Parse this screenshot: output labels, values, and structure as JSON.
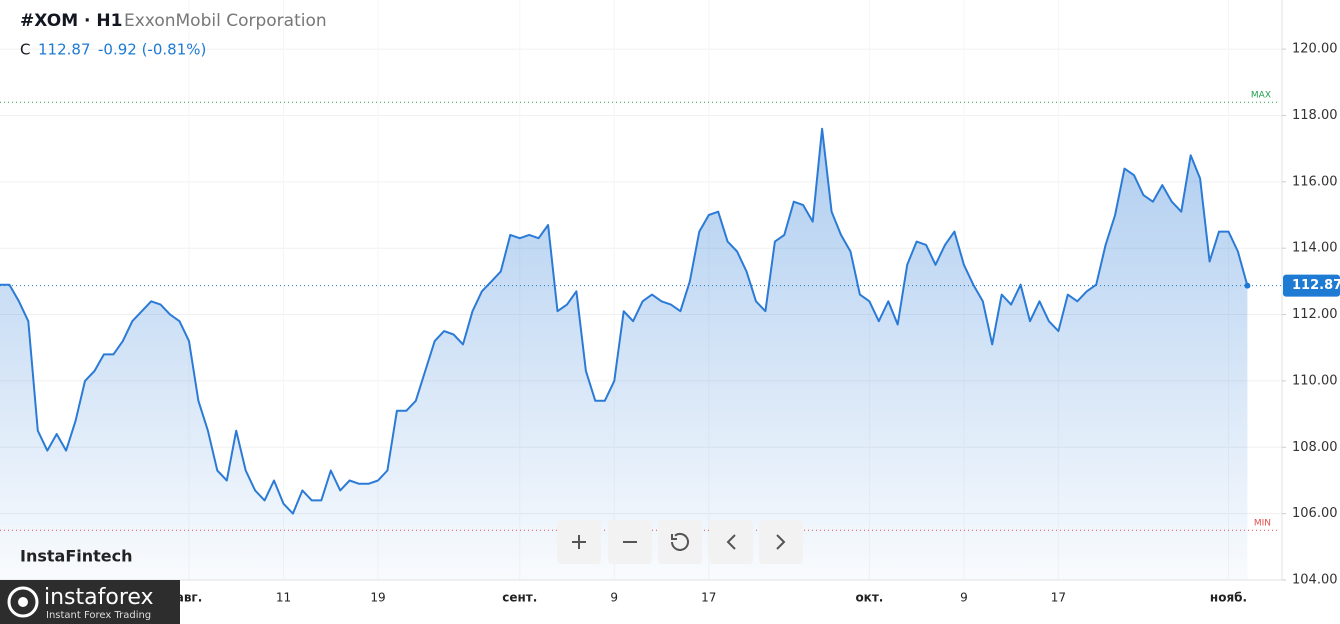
{
  "header": {
    "symbol": "#XOM · H1",
    "company": "ExxonMobil Corporation",
    "price_prefix": "C",
    "change": "-0.92 (-0.81%)"
  },
  "brand": {
    "watermark": "InstaFintech",
    "logo": "instaforex",
    "tagline": "Instant Forex Trading"
  },
  "chart_data": {
    "type": "area",
    "color": "#2b7bd6",
    "grid": true,
    "categories": [
      null,
      null,
      null,
      null,
      null,
      null,
      null,
      null,
      null,
      null,
      null,
      null,
      null,
      null,
      null,
      null,
      null,
      null,
      null,
      null,
      "авг.",
      null,
      null,
      null,
      null,
      null,
      null,
      null,
      null,
      null,
      "11",
      null,
      null,
      null,
      null,
      null,
      null,
      null,
      null,
      null,
      "19",
      null,
      null,
      null,
      null,
      null,
      null,
      null,
      null,
      null,
      null,
      null,
      null,
      null,
      null,
      "сент.",
      null,
      null,
      null,
      null,
      null,
      null,
      null,
      null,
      null,
      "9",
      null,
      null,
      null,
      null,
      null,
      null,
      null,
      null,
      null,
      "17",
      null,
      null,
      null,
      null,
      null,
      null,
      null,
      null,
      null,
      null,
      null,
      null,
      null,
      null,
      null,
      null,
      "окт.",
      null,
      null,
      null,
      null,
      null,
      null,
      null,
      null,
      null,
      "9",
      null,
      null,
      null,
      null,
      null,
      null,
      null,
      null,
      null,
      "17",
      null,
      null,
      null,
      null,
      null,
      null,
      null,
      null,
      null,
      null,
      null,
      null,
      null,
      null,
      null,
      null,
      null,
      "нояб.",
      null,
      null
    ],
    "values": [
      112.9,
      112.9,
      112.4,
      111.8,
      108.5,
      107.9,
      108.4,
      107.9,
      108.8,
      110.0,
      110.3,
      110.8,
      110.8,
      111.2,
      111.8,
      112.1,
      112.4,
      112.3,
      112.0,
      111.8,
      111.2,
      109.4,
      108.5,
      107.3,
      107.0,
      108.5,
      107.3,
      106.7,
      106.4,
      107.0,
      106.3,
      106.0,
      106.7,
      106.4,
      106.4,
      107.3,
      106.7,
      107.0,
      106.9,
      106.9,
      107.0,
      107.3,
      109.1,
      109.1,
      109.4,
      110.3,
      111.2,
      111.5,
      111.4,
      111.1,
      112.1,
      112.7,
      113.0,
      113.3,
      114.4,
      114.3,
      114.4,
      114.3,
      114.7,
      112.1,
      112.3,
      112.7,
      110.3,
      109.4,
      109.4,
      110.0,
      112.1,
      111.8,
      112.4,
      112.6,
      112.4,
      112.3,
      112.1,
      113.0,
      114.5,
      115.0,
      115.1,
      114.2,
      113.9,
      113.3,
      112.4,
      112.1,
      114.2,
      114.4,
      115.4,
      115.3,
      114.8,
      117.6,
      115.1,
      114.4,
      113.9,
      112.6,
      112.4,
      111.8,
      112.4,
      111.7,
      113.5,
      114.2,
      114.1,
      113.5,
      114.1,
      114.5,
      113.5,
      112.9,
      112.4,
      111.1,
      112.6,
      112.3,
      112.9,
      111.8,
      112.4,
      111.8,
      111.5,
      112.6,
      112.4,
      112.7,
      112.9,
      114.1,
      115.0,
      116.4,
      116.2,
      115.6,
      115.4,
      115.9,
      115.4,
      115.1,
      116.8,
      116.1,
      113.6,
      114.5,
      114.5,
      113.9,
      112.87
    ],
    "ylim": [
      104,
      121.48
    ],
    "yticks": [
      {
        "value": 104,
        "label": "104.00"
      },
      {
        "value": 106,
        "label": "106.00"
      },
      {
        "value": 108,
        "label": "108.00"
      },
      {
        "value": 110,
        "label": "110.00"
      },
      {
        "value": 112,
        "label": "112.00"
      },
      {
        "value": 114,
        "label": "114.00"
      },
      {
        "value": 116,
        "label": "116.00"
      },
      {
        "value": 118,
        "label": "118.00"
      },
      {
        "value": 120,
        "label": "120.00"
      }
    ],
    "max_line": {
      "label": "MAX",
      "value": 118.4
    },
    "min_line": {
      "label": "MIN",
      "value": 105.5
    }
  }
}
